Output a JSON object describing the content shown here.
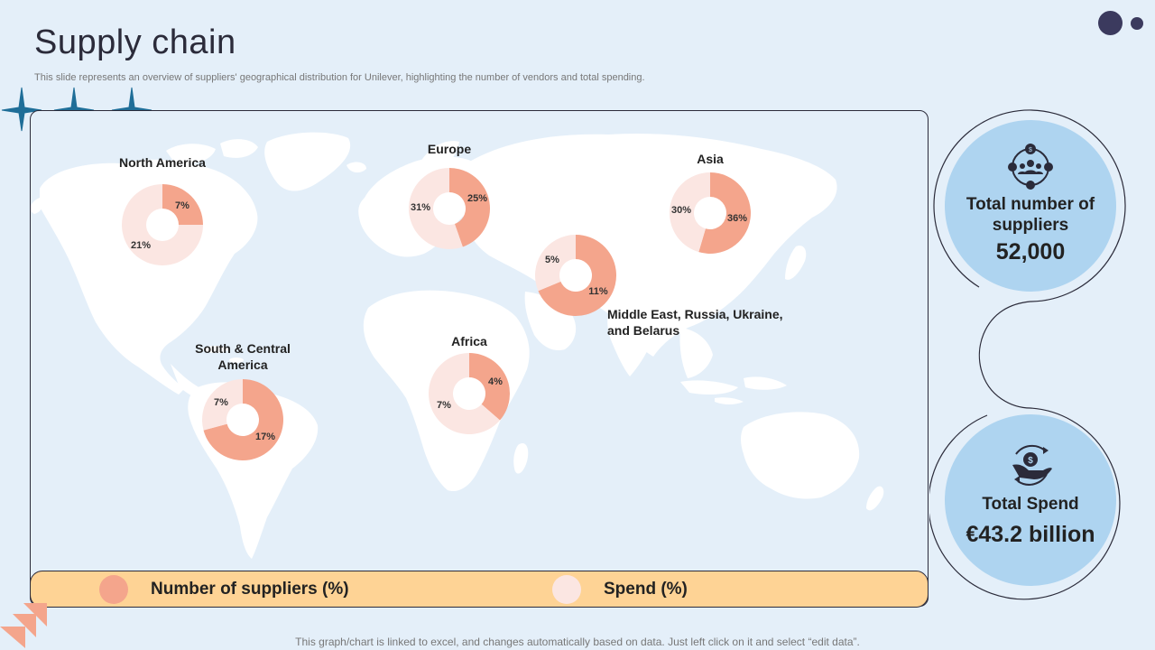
{
  "title": "Supply chain",
  "subtitle": "This slide represents an overview of suppliers' geographical distribution for Unilever, highlighting the number of vendors and total spending.",
  "legend": {
    "suppliers_label": "Number of suppliers (%)",
    "spend_label": "Spend (%)"
  },
  "colors": {
    "suppliers": "#f4a58c",
    "spend": "#fbe6e2",
    "bar": "#fed395",
    "stat_circle": "#aed4f0",
    "dark": "#3b3a5e"
  },
  "stats": {
    "suppliers_label": "Total number of suppliers",
    "suppliers_value": "52,000",
    "spend_label": "Total Spend",
    "spend_value": "€43.2 billion"
  },
  "footer": "This graph/chart is linked to excel,  and changes automatically based on data. Just left click on it and select “edit data”.",
  "chart_data": {
    "type": "pie",
    "series_names": [
      "Number of suppliers (%)",
      "Spend (%)"
    ],
    "regions": [
      {
        "name": "North America",
        "suppliers": 7,
        "spend": 21
      },
      {
        "name": "Europe",
        "suppliers": 25,
        "spend": 31
      },
      {
        "name": "Asia",
        "suppliers": 36,
        "spend": 30
      },
      {
        "name": "Middle East, Russia, Ukraine, and Belarus",
        "suppliers": 11,
        "spend": 5
      },
      {
        "name": "Africa",
        "suppliers": 4,
        "spend": 7
      },
      {
        "name": "South & Central America",
        "suppliers": 17,
        "spend": 7
      }
    ]
  }
}
